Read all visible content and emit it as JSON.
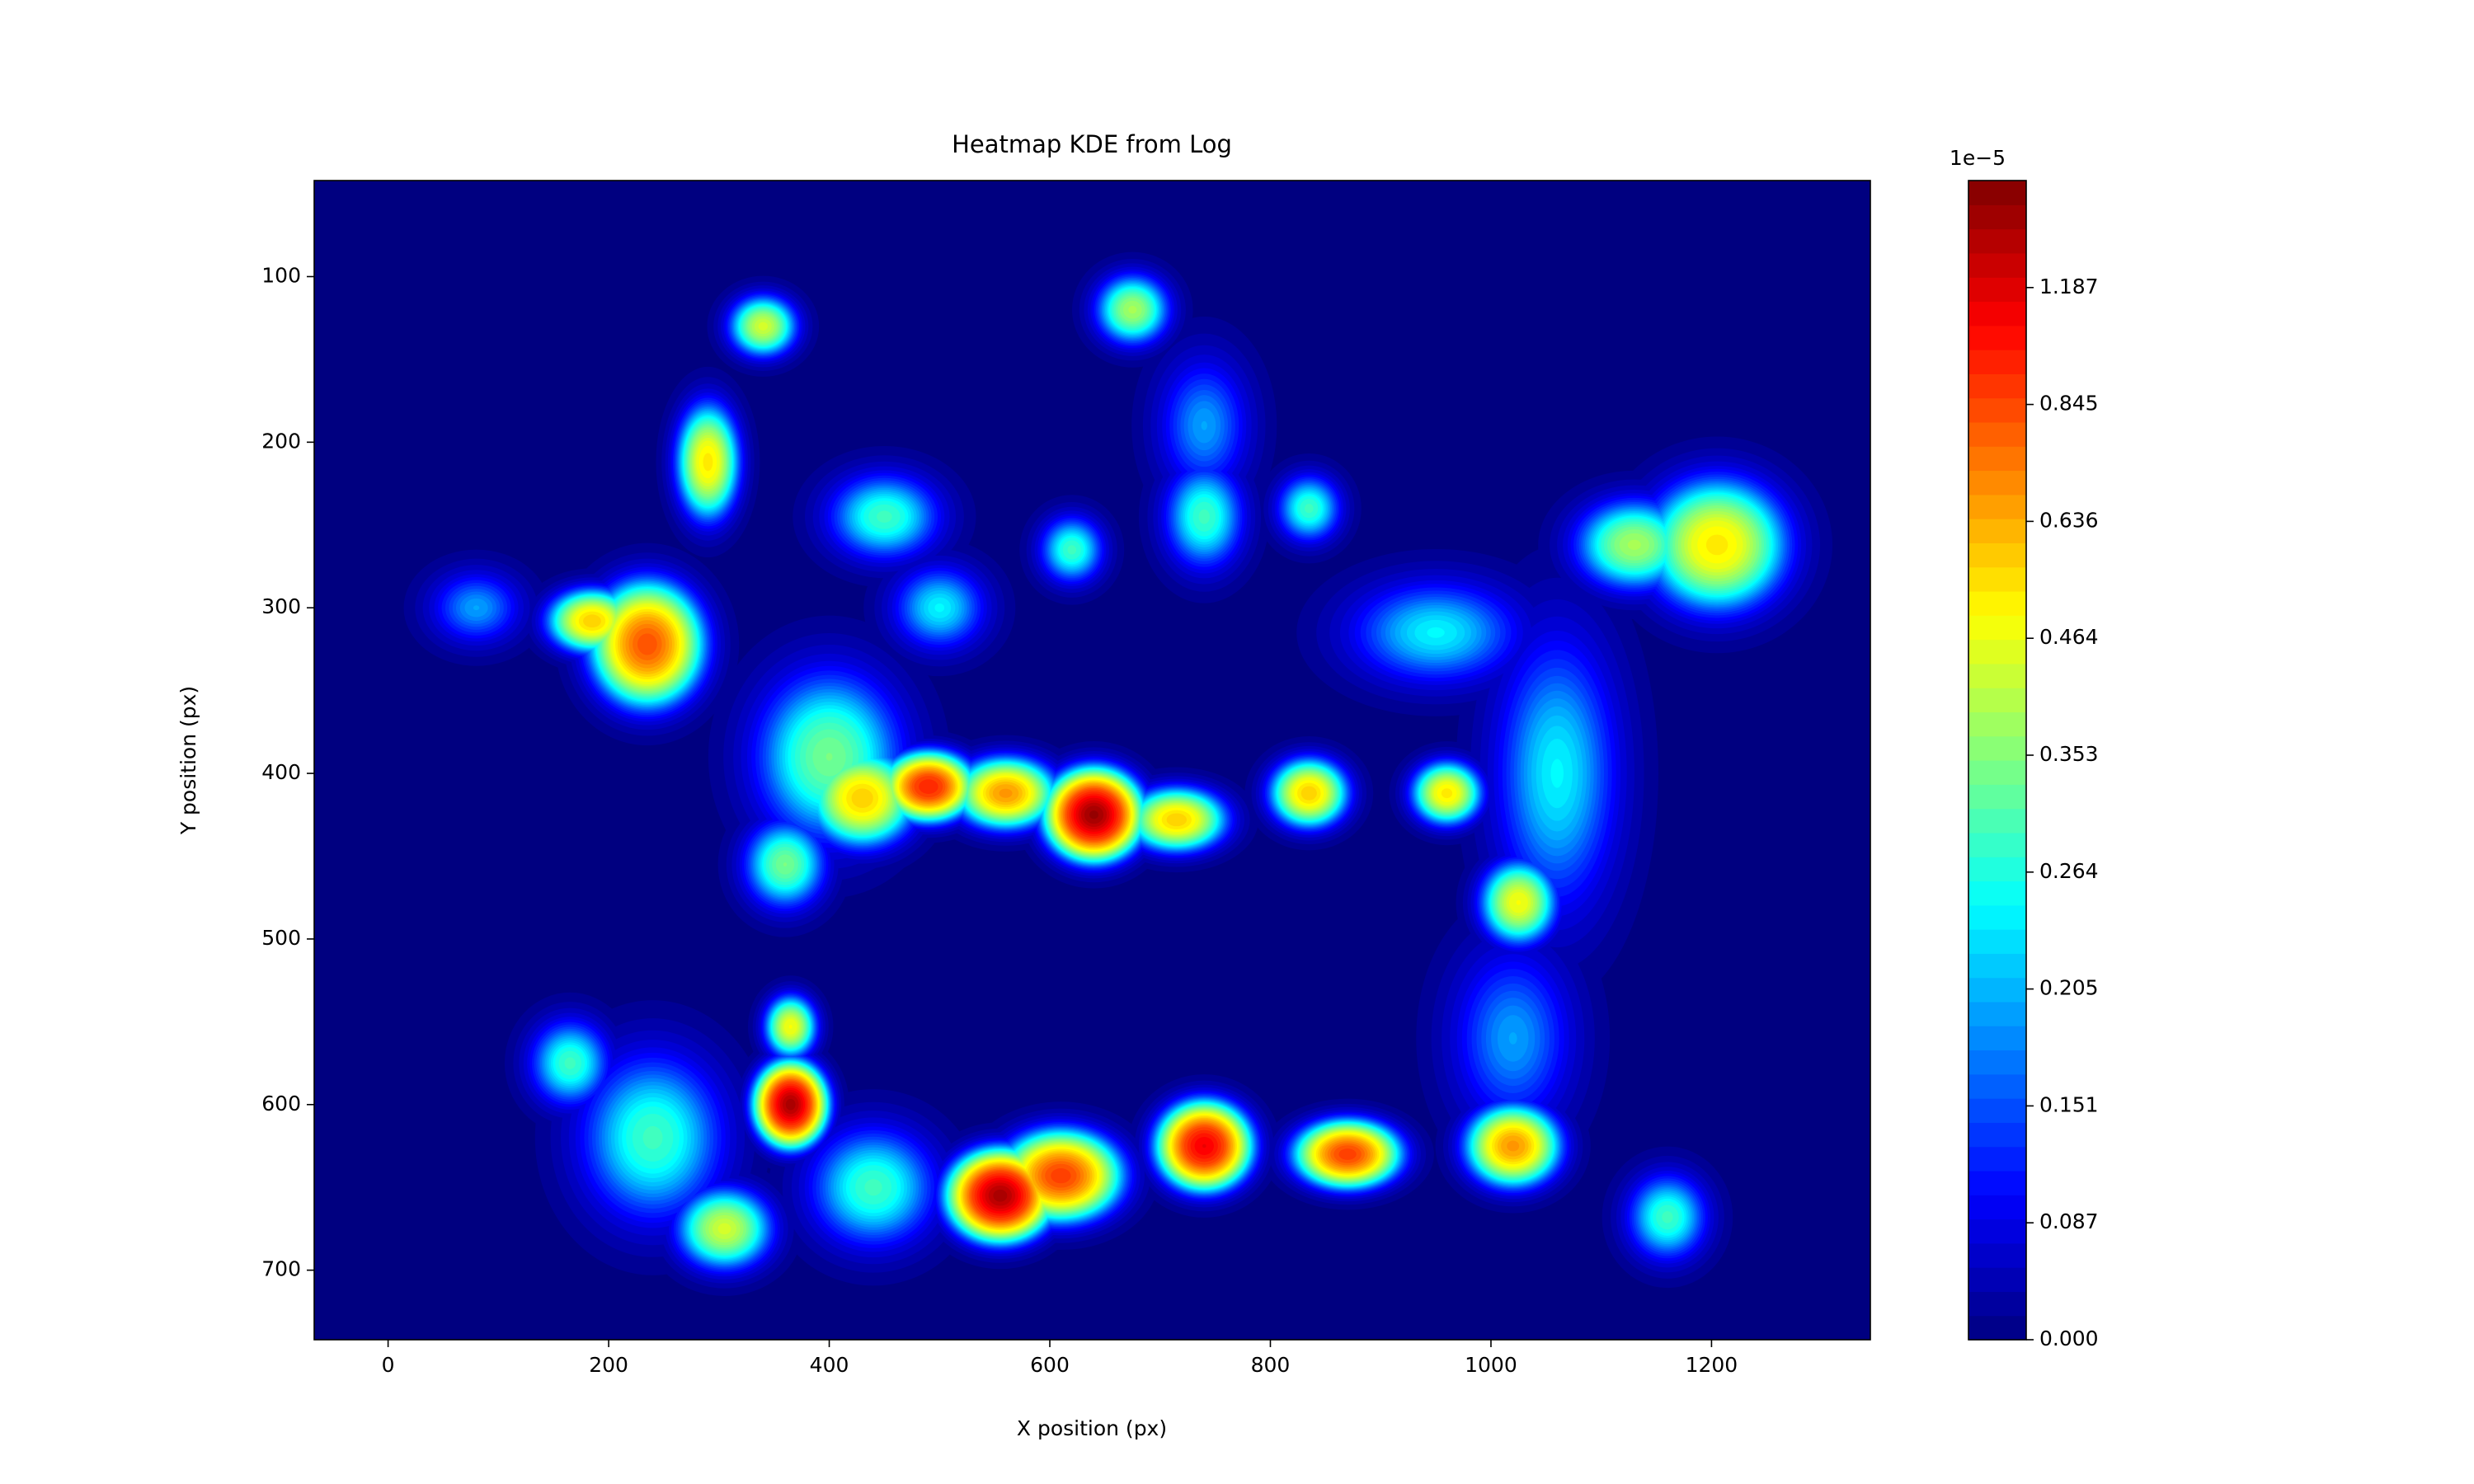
{
  "chart_data": {
    "type": "heatmap",
    "title": "Heatmap KDE from Log",
    "xlabel": "X position (px)",
    "ylabel": "Y position (px)",
    "xlim": [
      -67,
      1344
    ],
    "ylim": [
      742,
      42
    ],
    "xticks": [
      0,
      200,
      400,
      600,
      800,
      1000,
      1200
    ],
    "yticks": [
      100,
      200,
      300,
      400,
      500,
      600,
      700
    ],
    "colormap": "jet",
    "colorbar": {
      "offset_label": "1e−5",
      "clim": [
        0,
        1.5
      ],
      "ticks": [
        {
          "value": 0,
          "label": "0.000"
        },
        0.087,
        0.151,
        0.205,
        0.264,
        0.353,
        0.464,
        0.636,
        0.845,
        1.187
      ]
    },
    "hotspots": [
      {
        "x": 640,
        "y": 425,
        "value": 1.45,
        "sx": 24,
        "sy": 15
      },
      {
        "x": 365,
        "y": 600,
        "value": 1.4,
        "sx": 18,
        "sy": 14
      },
      {
        "x": 555,
        "y": 655,
        "value": 1.4,
        "sx": 26,
        "sy": 15
      },
      {
        "x": 610,
        "y": 643,
        "value": 0.9,
        "sx": 32,
        "sy": 16
      },
      {
        "x": 740,
        "y": 625,
        "value": 1.15,
        "sx": 24,
        "sy": 15
      },
      {
        "x": 870,
        "y": 630,
        "value": 0.9,
        "sx": 28,
        "sy": 12
      },
      {
        "x": 1020,
        "y": 625,
        "value": 0.7,
        "sx": 26,
        "sy": 15
      },
      {
        "x": 490,
        "y": 408,
        "value": 1.0,
        "sx": 24,
        "sy": 12
      },
      {
        "x": 560,
        "y": 412,
        "value": 0.7,
        "sx": 28,
        "sy": 13
      },
      {
        "x": 430,
        "y": 415,
        "value": 0.6,
        "sx": 30,
        "sy": 18
      },
      {
        "x": 715,
        "y": 428,
        "value": 0.6,
        "sx": 28,
        "sy": 12
      },
      {
        "x": 835,
        "y": 412,
        "value": 0.6,
        "sx": 22,
        "sy": 13
      },
      {
        "x": 960,
        "y": 412,
        "value": 0.55,
        "sx": 20,
        "sy": 12
      },
      {
        "x": 1025,
        "y": 478,
        "value": 0.5,
        "sx": 22,
        "sy": 16
      },
      {
        "x": 235,
        "y": 322,
        "value": 0.85,
        "sx": 30,
        "sy": 22
      },
      {
        "x": 185,
        "y": 308,
        "value": 0.6,
        "sx": 25,
        "sy": 12
      },
      {
        "x": 290,
        "y": 212,
        "value": 0.55,
        "sx": 18,
        "sy": 22
      },
      {
        "x": 340,
        "y": 130,
        "value": 0.45,
        "sx": 20,
        "sy": 12
      },
      {
        "x": 675,
        "y": 120,
        "value": 0.4,
        "sx": 22,
        "sy": 14
      },
      {
        "x": 1205,
        "y": 262,
        "value": 0.55,
        "sx": 40,
        "sy": 25
      },
      {
        "x": 1130,
        "y": 262,
        "value": 0.4,
        "sx": 35,
        "sy": 18
      },
      {
        "x": 365,
        "y": 553,
        "value": 0.5,
        "sx": 15,
        "sy": 12
      },
      {
        "x": 305,
        "y": 675,
        "value": 0.45,
        "sx": 28,
        "sy": 16
      },
      {
        "x": 165,
        "y": 575,
        "value": 0.3,
        "sx": 25,
        "sy": 18
      },
      {
        "x": 1160,
        "y": 668,
        "value": 0.3,
        "sx": 25,
        "sy": 18
      },
      {
        "x": 740,
        "y": 245,
        "value": 0.3,
        "sx": 25,
        "sy": 22
      },
      {
        "x": 835,
        "y": 240,
        "value": 0.3,
        "sx": 20,
        "sy": 14
      },
      {
        "x": 620,
        "y": 265,
        "value": 0.3,
        "sx": 20,
        "sy": 14
      },
      {
        "x": 450,
        "y": 245,
        "value": 0.3,
        "sx": 35,
        "sy": 18
      },
      {
        "x": 80,
        "y": 300,
        "value": 0.2,
        "sx": 30,
        "sy": 16
      },
      {
        "x": 400,
        "y": 390,
        "value": 0.35,
        "sx": 45,
        "sy": 35
      },
      {
        "x": 950,
        "y": 315,
        "value": 0.25,
        "sx": 55,
        "sy": 22
      },
      {
        "x": 1060,
        "y": 400,
        "value": 0.25,
        "sx": 40,
        "sy": 60
      },
      {
        "x": 440,
        "y": 650,
        "value": 0.3,
        "sx": 40,
        "sy": 25
      },
      {
        "x": 360,
        "y": 455,
        "value": 0.35,
        "sx": 25,
        "sy": 18
      },
      {
        "x": 1020,
        "y": 560,
        "value": 0.2,
        "sx": 40,
        "sy": 40
      },
      {
        "x": 240,
        "y": 620,
        "value": 0.3,
        "sx": 45,
        "sy": 35
      },
      {
        "x": 740,
        "y": 190,
        "value": 0.2,
        "sx": 30,
        "sy": 30
      },
      {
        "x": 500,
        "y": 300,
        "value": 0.25,
        "sx": 30,
        "sy": 18
      }
    ]
  }
}
